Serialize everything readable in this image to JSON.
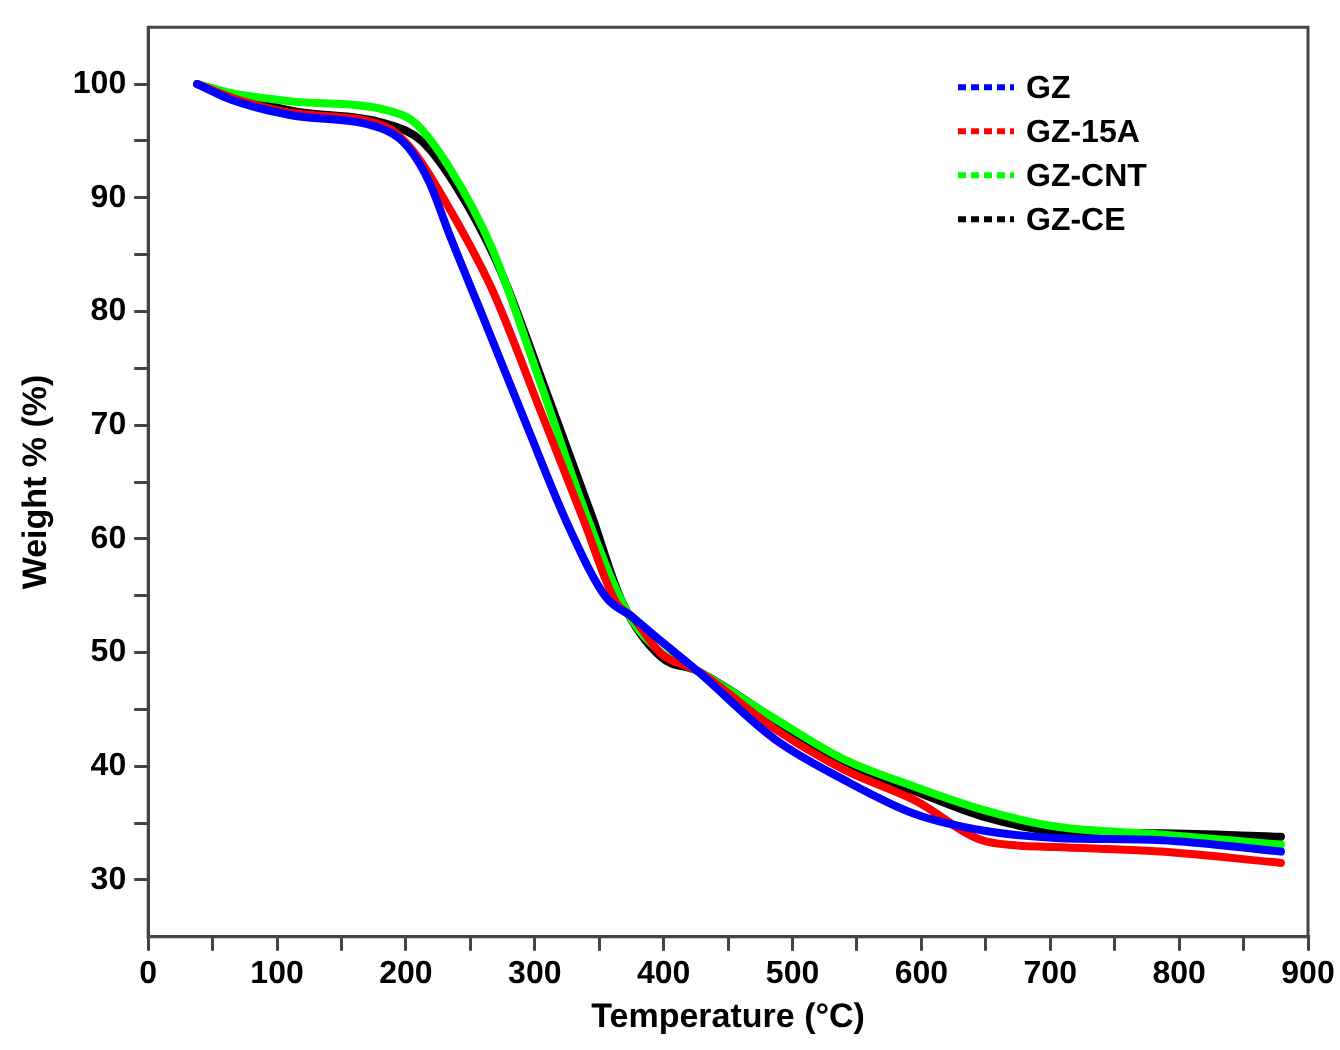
{
  "chart_data": {
    "type": "line",
    "xlabel": "Temperature (°C)",
    "ylabel": "Weight % (%)",
    "xlim": [
      0,
      900
    ],
    "ylim": [
      25,
      105
    ],
    "xticks": [
      0,
      {
        "value": 50,
        "label": null
      },
      100,
      {
        "value": 150,
        "label": null
      },
      200,
      {
        "value": 250,
        "label": null
      },
      300,
      {
        "value": 350,
        "label": null
      },
      400,
      {
        "value": 450,
        "label": null
      },
      500,
      {
        "value": 550,
        "label": null
      },
      600,
      {
        "value": 650,
        "label": null
      },
      700,
      {
        "value": 750,
        "label": null
      },
      800,
      {
        "value": 850,
        "label": null
      },
      900
    ],
    "yticks": [
      30,
      {
        "value": 35,
        "label": null
      },
      40,
      {
        "value": 45,
        "label": null
      },
      50,
      {
        "value": 55,
        "label": null
      },
      60,
      {
        "value": 65,
        "label": null
      },
      70,
      {
        "value": 75,
        "label": null
      },
      80,
      {
        "value": 85,
        "label": null
      },
      90,
      {
        "value": 95,
        "label": null
      },
      100
    ],
    "grid": false,
    "legend": "top right",
    "marker": "none",
    "line_style": "solid",
    "series": [
      {
        "name": "GZ",
        "color": "#0000ff",
        "x": [
          38,
          65,
          109,
          185,
          202,
          218,
          234,
          262,
          294,
          327,
          355,
          376,
          398,
          426,
          486,
          540,
          595,
          650,
          704,
          786,
          879
        ],
        "values": [
          100,
          98.6,
          97.3,
          95.9,
          94.4,
          91.4,
          86.7,
          78.9,
          69.9,
          60.9,
          54.9,
          53.1,
          51.0,
          48.4,
          42.4,
          38.8,
          35.8,
          34.3,
          33.7,
          33.5,
          32.5
        ]
      },
      {
        "name": "GZ-15A",
        "color": "#ff0000",
        "x": [
          38,
          65,
          109,
          185,
          207,
          234,
          267,
          305,
          338,
          363,
          376,
          398,
          426,
          486,
          540,
          595,
          650,
          704,
          786,
          879
        ],
        "values": [
          100,
          98.8,
          97.5,
          96.2,
          93.9,
          89.0,
          81.9,
          71.1,
          61.6,
          54.4,
          53.1,
          49.9,
          48.4,
          43.3,
          39.7,
          37.0,
          33.4,
          32.9,
          32.5,
          31.5
        ]
      },
      {
        "name": "GZ-CNT",
        "color": "#00ff00",
        "x": [
          38,
          65,
          109,
          185,
          207,
          234,
          267,
          305,
          338,
          371,
          398,
          426,
          486,
          540,
          595,
          650,
          704,
          786,
          879
        ],
        "values": [
          100,
          99.2,
          98.5,
          97.7,
          96.6,
          92.6,
          85.5,
          73.5,
          62.7,
          53.7,
          50.0,
          48.4,
          44.2,
          40.6,
          38.2,
          36.1,
          34.7,
          34.0,
          33.1
        ]
      },
      {
        "name": "GZ-CE",
        "color": "#000000",
        "x": [
          38,
          65,
          109,
          185,
          212,
          240,
          273,
          311,
          344,
          368,
          398,
          426,
          486,
          540,
          595,
          650,
          704,
          786,
          879
        ],
        "values": [
          100,
          null,
          97.7,
          96.5,
          95.0,
          90.8,
          83.7,
          72.3,
          62.1,
          54.4,
          49.6,
          48.4,
          null,
          40.2,
          37.8,
          35.5,
          34.3,
          34.1,
          33.8
        ]
      }
    ]
  }
}
